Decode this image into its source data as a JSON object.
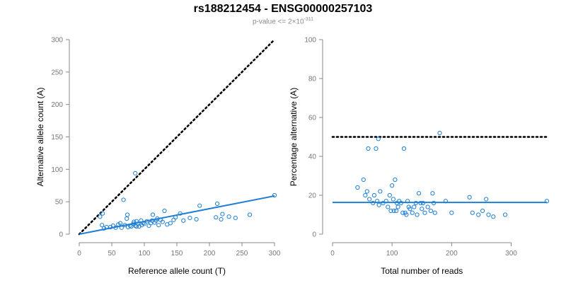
{
  "title": "rs188212454 - ENSG00000257103",
  "subtitle": {
    "prefix": "p-value <= 2",
    "times": "×",
    "base": "10",
    "exponent": "-311"
  },
  "colors": {
    "points": "#1f7fd6",
    "fit": "#1f7fd6",
    "reference": "#000000",
    "axis": "#888888"
  },
  "chart_data": [
    {
      "type": "scatter",
      "xlabel": "Reference allele count (T)",
      "ylabel": "Alternative allele count (A)",
      "xlim": [
        0,
        300
      ],
      "ylim": [
        0,
        300
      ],
      "xticks": [
        0,
        50,
        100,
        150,
        200,
        250,
        300
      ],
      "yticks": [
        0,
        50,
        100,
        150,
        200,
        250,
        300
      ],
      "reference_line": {
        "style": "dotted",
        "from": [
          0,
          0
        ],
        "to": [
          300,
          300
        ]
      },
      "fit_line": {
        "style": "solid",
        "from": [
          0,
          0
        ],
        "to": [
          300,
          59
        ]
      },
      "points": [
        [
          32,
          27
        ],
        [
          35,
          14
        ],
        [
          36,
          32
        ],
        [
          38,
          9
        ],
        [
          42,
          11
        ],
        [
          48,
          11
        ],
        [
          52,
          13
        ],
        [
          56,
          10
        ],
        [
          60,
          15
        ],
        [
          63,
          17
        ],
        [
          65,
          10
        ],
        [
          68,
          53
        ],
        [
          70,
          14
        ],
        [
          73,
          24
        ],
        [
          74,
          30
        ],
        [
          75,
          11
        ],
        [
          78,
          13
        ],
        [
          80,
          12
        ],
        [
          83,
          16
        ],
        [
          84,
          19
        ],
        [
          86,
          13
        ],
        [
          86,
          94
        ],
        [
          88,
          20
        ],
        [
          88,
          12
        ],
        [
          90,
          16
        ],
        [
          92,
          12
        ],
        [
          95,
          21
        ],
        [
          96,
          14
        ],
        [
          98,
          17
        ],
        [
          100,
          16
        ],
        [
          104,
          20
        ],
        [
          107,
          13
        ],
        [
          110,
          17
        ],
        [
          112,
          21
        ],
        [
          113,
          30
        ],
        [
          116,
          18
        ],
        [
          118,
          21
        ],
        [
          120,
          24
        ],
        [
          122,
          14
        ],
        [
          125,
          22
        ],
        [
          128,
          19
        ],
        [
          131,
          36
        ],
        [
          135,
          15
        ],
        [
          140,
          17
        ],
        [
          145,
          22
        ],
        [
          148,
          26
        ],
        [
          155,
          32
        ],
        [
          160,
          21
        ],
        [
          170,
          25
        ],
        [
          180,
          23
        ],
        [
          185,
          44
        ],
        [
          210,
          26
        ],
        [
          212,
          47
        ],
        [
          218,
          23
        ],
        [
          220,
          31
        ],
        [
          230,
          27
        ],
        [
          240,
          25
        ],
        [
          262,
          30
        ],
        [
          300,
          60
        ]
      ]
    },
    {
      "type": "scatter",
      "xlabel": "Total number of reads",
      "ylabel": "Percentage alternative (A)",
      "xlim": [
        0,
        360
      ],
      "ylim": [
        0,
        100
      ],
      "xticks": [
        0,
        100,
        200,
        300
      ],
      "yticks": [
        0,
        20,
        40,
        60,
        80,
        100
      ],
      "reference_line": {
        "style": "dotted",
        "from": [
          0,
          50
        ],
        "to": [
          360,
          50
        ]
      },
      "fit_line": {
        "style": "solid",
        "from": [
          0,
          16.3
        ],
        "to": [
          360,
          16.3
        ]
      },
      "points": [
        [
          42,
          24
        ],
        [
          52,
          28
        ],
        [
          55,
          20
        ],
        [
          58,
          22
        ],
        [
          60,
          44
        ],
        [
          62,
          18
        ],
        [
          68,
          16
        ],
        [
          70,
          20
        ],
        [
          73,
          44
        ],
        [
          75,
          17
        ],
        [
          77,
          49
        ],
        [
          78,
          15
        ],
        [
          80,
          22
        ],
        [
          85,
          16
        ],
        [
          90,
          17
        ],
        [
          93,
          14
        ],
        [
          96,
          20
        ],
        [
          98,
          12
        ],
        [
          100,
          25
        ],
        [
          102,
          18
        ],
        [
          103,
          12
        ],
        [
          105,
          28
        ],
        [
          107,
          12
        ],
        [
          108,
          16
        ],
        [
          110,
          14
        ],
        [
          112,
          17
        ],
        [
          115,
          16
        ],
        [
          118,
          11
        ],
        [
          120,
          44
        ],
        [
          122,
          11
        ],
        [
          124,
          10
        ],
        [
          126,
          17
        ],
        [
          128,
          14
        ],
        [
          130,
          13
        ],
        [
          134,
          11
        ],
        [
          137,
          14
        ],
        [
          140,
          16
        ],
        [
          142,
          10
        ],
        [
          145,
          21
        ],
        [
          148,
          16
        ],
        [
          150,
          13
        ],
        [
          152,
          16
        ],
        [
          155,
          11
        ],
        [
          160,
          14
        ],
        [
          165,
          12
        ],
        [
          168,
          21
        ],
        [
          170,
          16
        ],
        [
          172,
          11
        ],
        [
          180,
          52
        ],
        [
          190,
          17
        ],
        [
          200,
          11
        ],
        [
          230,
          19
        ],
        [
          235,
          11
        ],
        [
          245,
          10
        ],
        [
          252,
          12
        ],
        [
          258,
          18
        ],
        [
          262,
          10
        ],
        [
          270,
          9
        ],
        [
          290,
          10
        ],
        [
          360,
          17
        ]
      ]
    }
  ]
}
